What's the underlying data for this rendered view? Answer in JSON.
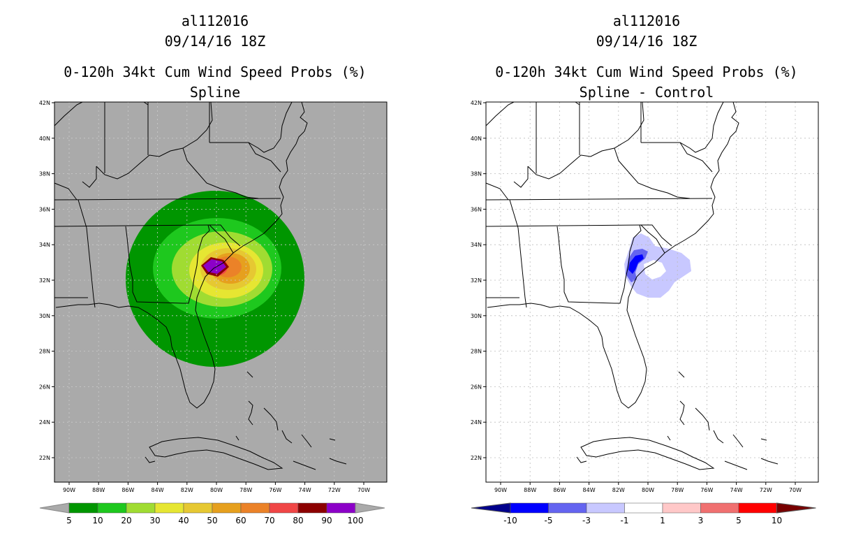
{
  "left": {
    "storm_id": "al112016",
    "datetime": "09/14/16 18Z",
    "product": "0-120h 34kt Cum Wind Speed Probs (%)",
    "subtitle": "Spline"
  },
  "right": {
    "storm_id": "al112016",
    "datetime": "09/14/16 18Z",
    "product": "0-120h 34kt Cum Wind Speed Probs (%)",
    "subtitle": "Spline - Control"
  },
  "lat_labels": [
    "42N",
    "40N",
    "38N",
    "36N",
    "34N",
    "32N",
    "30N",
    "28N",
    "26N",
    "24N",
    "22N"
  ],
  "lon_labels": [
    "90W",
    "88W",
    "86W",
    "84W",
    "82W",
    "80W",
    "78W",
    "76W",
    "74W",
    "72W",
    "70W"
  ],
  "left_colorbar": {
    "labels": [
      "5",
      "10",
      "20",
      "30",
      "40",
      "50",
      "60",
      "70",
      "80",
      "90",
      "100"
    ],
    "colors": [
      "#009600",
      "#1ec81e",
      "#a0dc32",
      "#e6e632",
      "#e6c832",
      "#e6a01e",
      "#eb8228",
      "#f04646",
      "#8c0000",
      "#8c00c8"
    ]
  },
  "right_colorbar": {
    "labels": [
      "-10",
      "-5",
      "-3",
      "-1",
      "1",
      "3",
      "5",
      "10"
    ],
    "colors": [
      "#00008c",
      "#0000ff",
      "#6464f0",
      "#c8c8ff",
      "#ffffff",
      "#ffc8c8",
      "#f07070",
      "#ff0000",
      "#780000"
    ]
  }
}
